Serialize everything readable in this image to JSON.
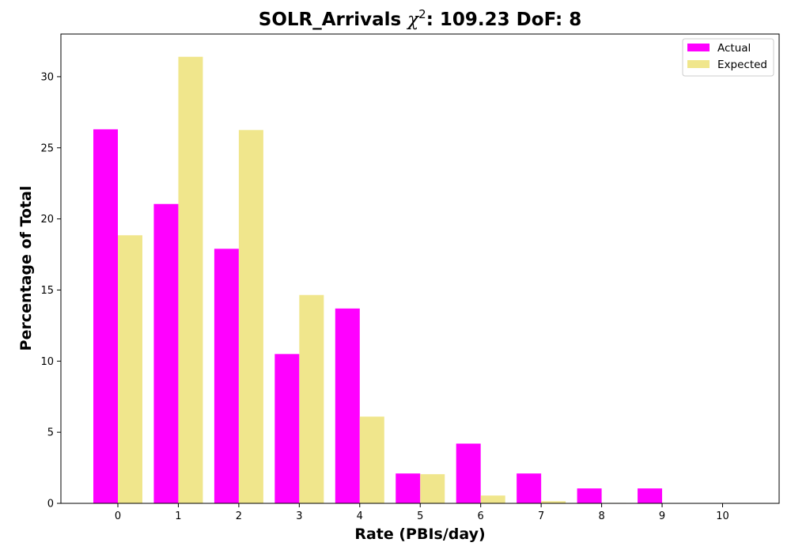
{
  "chart_data": {
    "type": "bar",
    "title_prefix": "SOLR_Arrivals ",
    "title_chi": "χ",
    "title_sup": "2",
    "title_suffix": ": 109.23 DoF: 8",
    "xlabel": "Rate (PBIs/day)",
    "ylabel": "Percentage of Total",
    "categories": [
      "0",
      "1",
      "2",
      "3",
      "4",
      "5",
      "6",
      "7",
      "8",
      "9",
      "10"
    ],
    "yticks": [
      "0",
      "5",
      "10",
      "15",
      "20",
      "25",
      "30"
    ],
    "ylim": [
      0,
      33
    ],
    "grid": false,
    "legend_position": "top-right",
    "series": [
      {
        "name": "Actual",
        "color": "#ff00ff",
        "values": [
          26.3,
          21.05,
          17.9,
          10.5,
          13.7,
          2.1,
          4.2,
          2.1,
          1.05,
          1.05,
          0
        ]
      },
      {
        "name": "Expected",
        "color": "#f0e68c",
        "values": [
          18.85,
          31.4,
          26.25,
          14.65,
          6.1,
          2.05,
          0.55,
          0.15,
          0.03,
          0.01,
          0
        ]
      }
    ]
  }
}
